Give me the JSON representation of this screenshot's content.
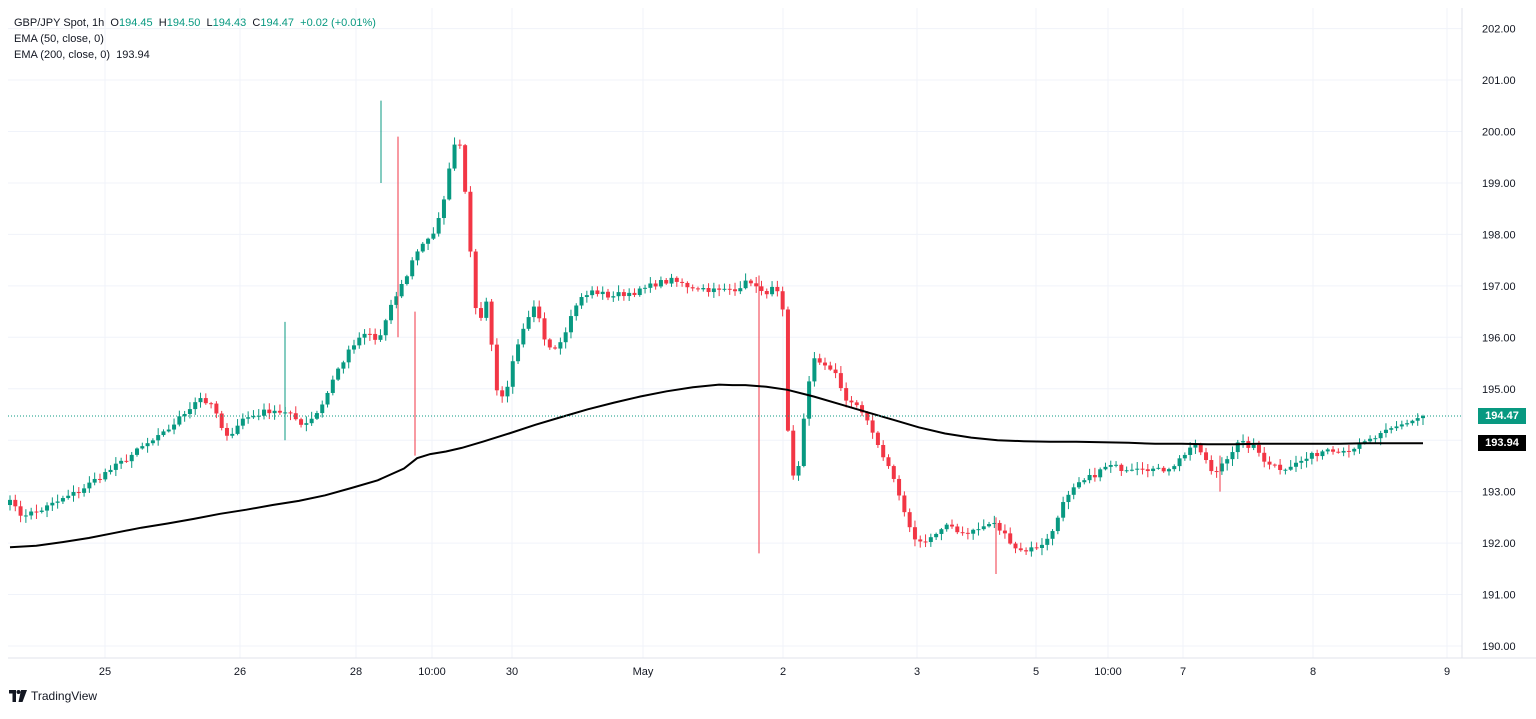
{
  "legend": {
    "symbol": "GBP/JPY Spot, 1h",
    "o_label": "O",
    "o": "194.45",
    "h_label": "H",
    "h": "194.50",
    "l_label": "L",
    "l": "194.43",
    "c_label": "C",
    "c": "194.47",
    "change": "+0.02 (+0.01%)",
    "ema50": "EMA (50, close, 0)",
    "ema200": "EMA (200, close, 0)",
    "ema200_value": "193.94"
  },
  "price_tags": {
    "last": "194.47",
    "ema": "193.94"
  },
  "branding": {
    "name": "TradingView"
  },
  "colors": {
    "up": "#089981",
    "down": "#F23645",
    "ema": "#000000",
    "grid": "#F0F3FA",
    "ema_tag": "#000000"
  },
  "chart_data": {
    "type": "candlestick",
    "title": "GBP/JPY Spot, 1h",
    "y_axis_ticks": [
      "190.00",
      "191.00",
      "192.00",
      "193.00",
      "194.00",
      "195.00",
      "196.00",
      "197.00",
      "198.00",
      "199.00",
      "200.00",
      "201.00",
      "202.00"
    ],
    "ylim": [
      189.8,
      202.2
    ],
    "x_axis_ticks": [
      "25",
      "26",
      "28",
      "10:00",
      "30",
      "May",
      "2",
      "3",
      "5",
      "10:00",
      "7",
      "8",
      "9"
    ],
    "last_price": 194.47,
    "ema200_last": 193.94,
    "price_path": [
      [
        0,
        192.9
      ],
      [
        3,
        192.55
      ],
      [
        10,
        192.6
      ],
      [
        18,
        192.8
      ],
      [
        26,
        193.0
      ],
      [
        33,
        193.25
      ],
      [
        42,
        193.55
      ],
      [
        50,
        193.85
      ],
      [
        58,
        194.1
      ],
      [
        66,
        194.5
      ],
      [
        72,
        194.85
      ],
      [
        78,
        194.6
      ],
      [
        82,
        194.0
      ],
      [
        88,
        194.4
      ],
      [
        94,
        194.5
      ],
      [
        100,
        194.6
      ],
      [
        106,
        194.5
      ],
      [
        112,
        194.3
      ],
      [
        118,
        194.6
      ],
      [
        124,
        195.3
      ],
      [
        130,
        195.8
      ],
      [
        136,
        196.1
      ],
      [
        140,
        195.9
      ],
      [
        146,
        196.7
      ],
      [
        151,
        197.2
      ],
      [
        154,
        197.6
      ],
      [
        158,
        197.9
      ],
      [
        162,
        198.0
      ],
      [
        166,
        198.9
      ],
      [
        170,
        200.0
      ],
      [
        172,
        199.6
      ],
      [
        175,
        197.9
      ],
      [
        178,
        196.1
      ],
      [
        181,
        196.8
      ],
      [
        183,
        196.1
      ],
      [
        185,
        195.0
      ],
      [
        188,
        194.8
      ],
      [
        192,
        195.6
      ],
      [
        196,
        196.2
      ],
      [
        200,
        196.6
      ],
      [
        204,
        195.9
      ],
      [
        208,
        195.8
      ],
      [
        212,
        196.2
      ],
      [
        216,
        196.7
      ],
      [
        222,
        196.9
      ],
      [
        228,
        196.8
      ],
      [
        234,
        196.85
      ],
      [
        240,
        196.9
      ],
      [
        246,
        197.05
      ],
      [
        252,
        197.1
      ],
      [
        258,
        197.0
      ],
      [
        264,
        196.95
      ],
      [
        270,
        196.9
      ],
      [
        276,
        196.95
      ],
      [
        282,
        197.1
      ],
      [
        286,
        196.85
      ],
      [
        291,
        196.95
      ],
      [
        294,
        196.7
      ],
      [
        297,
        193.2
      ],
      [
        300,
        193.4
      ],
      [
        303,
        194.8
      ],
      [
        306,
        195.55
      ],
      [
        310,
        195.5
      ],
      [
        314,
        195.3
      ],
      [
        318,
        194.8
      ],
      [
        324,
        194.6
      ],
      [
        330,
        194.0
      ],
      [
        334,
        193.5
      ],
      [
        338,
        193.0
      ],
      [
        342,
        192.3
      ],
      [
        346,
        192.0
      ],
      [
        352,
        192.15
      ],
      [
        358,
        192.35
      ],
      [
        362,
        192.2
      ],
      [
        368,
        192.25
      ],
      [
        374,
        192.4
      ],
      [
        380,
        192.1
      ],
      [
        384,
        191.85
      ],
      [
        390,
        191.9
      ],
      [
        396,
        192.1
      ],
      [
        400,
        192.7
      ],
      [
        406,
        193.1
      ],
      [
        412,
        193.3
      ],
      [
        418,
        193.5
      ],
      [
        424,
        193.45
      ],
      [
        430,
        193.5
      ],
      [
        438,
        193.4
      ],
      [
        444,
        193.55
      ],
      [
        450,
        193.9
      ],
      [
        454,
        193.75
      ],
      [
        458,
        193.3
      ],
      [
        462,
        193.6
      ],
      [
        468,
        193.95
      ],
      [
        474,
        193.85
      ],
      [
        478,
        193.6
      ],
      [
        484,
        193.45
      ],
      [
        490,
        193.55
      ],
      [
        496,
        193.7
      ],
      [
        502,
        193.85
      ],
      [
        508,
        193.8
      ],
      [
        514,
        193.9
      ],
      [
        520,
        194.05
      ],
      [
        526,
        194.2
      ],
      [
        532,
        194.35
      ],
      [
        538,
        194.47
      ]
    ],
    "ema200_path": [
      [
        0,
        191.92
      ],
      [
        10,
        191.95
      ],
      [
        20,
        192.02
      ],
      [
        30,
        192.1
      ],
      [
        40,
        192.2
      ],
      [
        50,
        192.3
      ],
      [
        60,
        192.38
      ],
      [
        70,
        192.47
      ],
      [
        80,
        192.57
      ],
      [
        90,
        192.65
      ],
      [
        100,
        192.74
      ],
      [
        110,
        192.82
      ],
      [
        120,
        192.93
      ],
      [
        130,
        193.07
      ],
      [
        140,
        193.22
      ],
      [
        150,
        193.45
      ],
      [
        155,
        193.65
      ],
      [
        160,
        193.73
      ],
      [
        166,
        193.78
      ],
      [
        172,
        193.85
      ],
      [
        180,
        193.97
      ],
      [
        190,
        194.13
      ],
      [
        200,
        194.3
      ],
      [
        210,
        194.45
      ],
      [
        220,
        194.6
      ],
      [
        230,
        194.73
      ],
      [
        240,
        194.85
      ],
      [
        250,
        194.95
      ],
      [
        260,
        195.03
      ],
      [
        270,
        195.08
      ],
      [
        275,
        195.07
      ],
      [
        280,
        195.07
      ],
      [
        288,
        195.04
      ],
      [
        296,
        194.98
      ],
      [
        306,
        194.85
      ],
      [
        316,
        194.7
      ],
      [
        326,
        194.55
      ],
      [
        336,
        194.4
      ],
      [
        346,
        194.25
      ],
      [
        356,
        194.13
      ],
      [
        366,
        194.05
      ],
      [
        376,
        194.0
      ],
      [
        386,
        193.98
      ],
      [
        396,
        193.97
      ],
      [
        406,
        193.97
      ],
      [
        416,
        193.96
      ],
      [
        426,
        193.95
      ],
      [
        436,
        193.93
      ],
      [
        446,
        193.93
      ],
      [
        456,
        193.92
      ],
      [
        466,
        193.92
      ],
      [
        476,
        193.93
      ],
      [
        486,
        193.93
      ],
      [
        496,
        193.93
      ],
      [
        506,
        193.93
      ],
      [
        516,
        193.94
      ],
      [
        526,
        193.94
      ],
      [
        538,
        193.94
      ]
    ]
  }
}
